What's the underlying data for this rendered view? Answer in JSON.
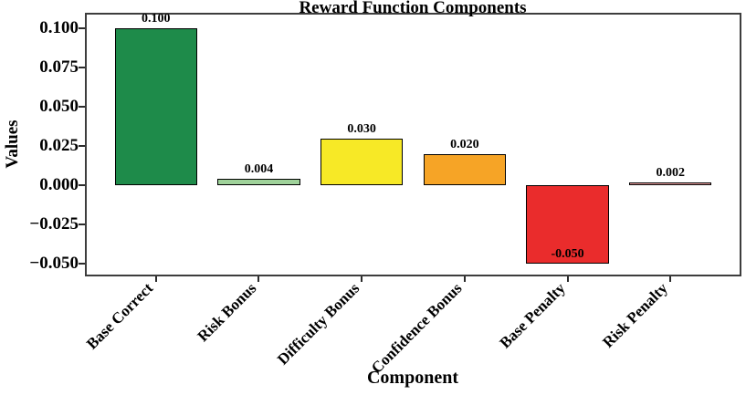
{
  "figure": {
    "title": "Reward Function Components",
    "xlabel": "Component",
    "ylabel": "Values"
  },
  "chart_data": {
    "type": "bar",
    "title": "Reward Function Components",
    "xlabel": "Component",
    "ylabel": "Values",
    "categories": [
      "Base Correct",
      "Risk Bonus",
      "Difficulty Bonus",
      "Confidence Bonus",
      "Base Penalty",
      "Risk Penalty"
    ],
    "values": [
      0.1,
      0.004,
      0.03,
      0.02,
      -0.05,
      0.002
    ],
    "value_labels": [
      "0.100",
      "0.004",
      "0.030",
      "0.020",
      "-0.050",
      "0.002"
    ],
    "bar_colors": [
      "#1e8b4a",
      "#9fd29a",
      "#f7e926",
      "#f6a426",
      "#ea2c2c",
      "#f0a0a0"
    ],
    "bar_edge_color": "#000000",
    "spine_color": "#3d3d3d",
    "y_ticks": [
      0.1,
      0.075,
      0.05,
      0.025,
      0.0,
      -0.025,
      -0.05
    ],
    "y_tick_labels": [
      "0.100",
      "0.075",
      "0.050",
      "0.025",
      "0.000",
      "−0.025",
      "−0.050"
    ],
    "ylim": [
      -0.058,
      0.11
    ],
    "xlim": [
      -0.69,
      5.69
    ],
    "bar_width": 0.8,
    "grid": false,
    "legend": null
  }
}
